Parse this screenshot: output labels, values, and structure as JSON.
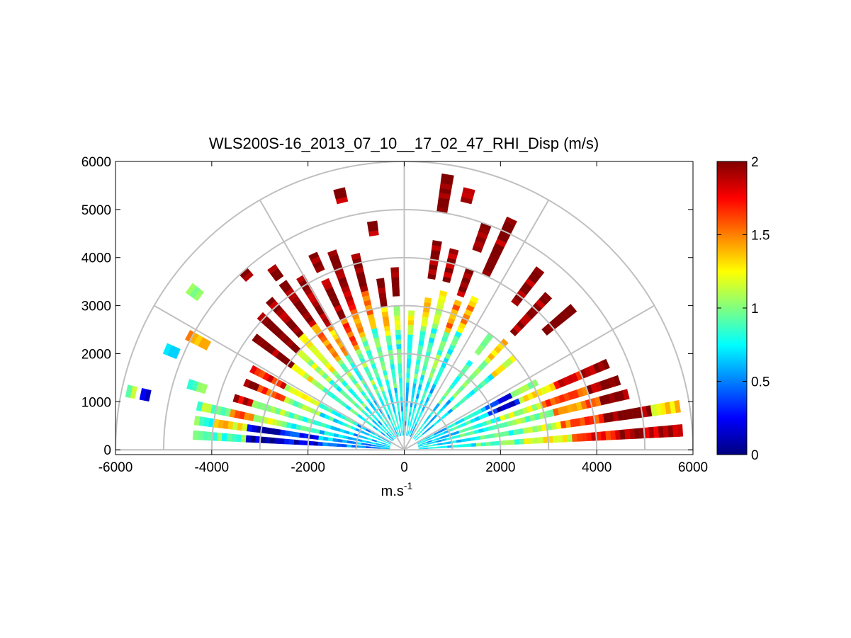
{
  "chart_data": {
    "type": "heatmap",
    "subtype": "polar-rhi-scan",
    "title": "WLS200S-16_2013_07_10__17_02_47_RHI_Disp (m/s)",
    "xlabel": "m.s",
    "xlabel_superscript": "-1",
    "ylabel": "",
    "xlim": [
      -6000,
      6000
    ],
    "ylim": [
      -100,
      6000
    ],
    "xticks": [
      "-6000",
      "-4000",
      "-2000",
      "0",
      "2000",
      "4000",
      "6000"
    ],
    "xtick_values": [
      -6000,
      -4000,
      -2000,
      0,
      2000,
      4000,
      6000
    ],
    "yticks": [
      "0",
      "1000",
      "2000",
      "3000",
      "4000",
      "5000",
      "6000"
    ],
    "ytick_values": [
      0,
      1000,
      2000,
      3000,
      4000,
      5000,
      6000
    ],
    "polar_grid": {
      "range_rings": [
        1000,
        2000,
        3000,
        4000,
        5000,
        6000
      ],
      "spokes_deg": [
        0,
        30,
        60,
        90,
        120,
        150,
        180
      ]
    },
    "colorbar": {
      "colormap": "jet",
      "min": 0,
      "max": 2,
      "ticks": [
        "0",
        "0.5",
        "1",
        "1.5",
        "2"
      ],
      "tick_values": [
        0,
        0.5,
        1,
        1.5,
        2
      ]
    },
    "range_gate_m": 100,
    "beam_width_deg": 2.5,
    "beams": [
      {
        "elev_deg": 4,
        "cells": [
          [
            300,
            1500,
            0.7
          ],
          [
            1500,
            2500,
            0.95
          ],
          [
            2500,
            3500,
            1.2
          ],
          [
            3500,
            4500,
            1.7
          ],
          [
            4500,
            5800,
            1.9
          ]
        ]
      },
      {
        "elev_deg": 9,
        "cells": [
          [
            300,
            1500,
            0.75
          ],
          [
            1500,
            2500,
            0.9
          ],
          [
            2500,
            3300,
            1.1
          ],
          [
            3300,
            4200,
            1.6
          ],
          [
            4200,
            5200,
            2.0
          ],
          [
            5200,
            5800,
            1.3
          ]
        ]
      },
      {
        "elev_deg": 14,
        "cells": [
          [
            300,
            1200,
            0.7
          ],
          [
            1200,
            2200,
            0.85
          ],
          [
            2200,
            3200,
            1.0
          ],
          [
            3200,
            4200,
            1.5
          ],
          [
            4200,
            4800,
            2.0
          ]
        ]
      },
      {
        "elev_deg": 18,
        "cells": [
          [
            300,
            1200,
            0.7
          ],
          [
            1200,
            2100,
            0.85
          ],
          [
            2100,
            3000,
            1.1
          ],
          [
            3000,
            4000,
            1.6
          ],
          [
            4000,
            4700,
            2.0
          ]
        ]
      },
      {
        "elev_deg": 23,
        "cells": [
          [
            300,
            1100,
            0.7
          ],
          [
            1100,
            1900,
            0.8
          ],
          [
            1900,
            2600,
            0.2
          ],
          [
            2600,
            3400,
            1.2
          ],
          [
            3400,
            4200,
            1.8
          ],
          [
            4200,
            4600,
            2.0
          ]
        ]
      },
      {
        "elev_deg": 27,
        "cells": [
          [
            300,
            1100,
            0.65
          ],
          [
            1100,
            1900,
            0.75
          ],
          [
            1900,
            2500,
            0.3
          ],
          [
            2500,
            3100,
            1.1
          ]
        ]
      },
      {
        "elev_deg": 40,
        "cells": [
          [
            300,
            1300,
            0.7
          ],
          [
            1300,
            2400,
            0.85
          ],
          [
            2400,
            3000,
            1.2
          ],
          [
            3800,
            4600,
            2.0
          ]
        ]
      },
      {
        "elev_deg": 47,
        "cells": [
          [
            300,
            1400,
            0.7
          ],
          [
            1400,
            2500,
            0.9
          ],
          [
            2500,
            3100,
            1.3
          ],
          [
            3300,
            4400,
            2.0
          ]
        ]
      },
      {
        "elev_deg": 53,
        "cells": [
          [
            300,
            1200,
            0.75
          ],
          [
            1200,
            2300,
            0.9
          ],
          [
            2500,
            3000,
            1.1
          ],
          [
            3800,
            4700,
            2.0
          ]
        ]
      },
      {
        "elev_deg": 65,
        "cells": [
          [
            300,
            1500,
            0.7
          ],
          [
            1500,
            2700,
            0.85
          ],
          [
            2700,
            3500,
            1.4
          ],
          [
            4000,
            5300,
            2.0
          ]
        ]
      },
      {
        "elev_deg": 70,
        "cells": [
          [
            300,
            1500,
            0.75
          ],
          [
            1500,
            2600,
            0.95
          ],
          [
            2600,
            3300,
            1.5
          ],
          [
            3400,
            4000,
            2.0
          ],
          [
            4400,
            5000,
            2.0
          ]
        ]
      },
      {
        "elev_deg": 76,
        "cells": [
          [
            300,
            1400,
            0.7
          ],
          [
            1400,
            2600,
            0.85
          ],
          [
            2600,
            3400,
            1.2
          ],
          [
            3600,
            4300,
            2.0
          ],
          [
            5300,
            5600,
            2.0
          ]
        ]
      },
      {
        "elev_deg": 81,
        "cells": [
          [
            300,
            1500,
            0.7
          ],
          [
            1500,
            2600,
            0.9
          ],
          [
            2600,
            3200,
            1.3
          ],
          [
            3600,
            4400,
            2.0
          ],
          [
            5000,
            5800,
            2.0
          ]
        ]
      },
      {
        "elev_deg": 87,
        "cells": [
          [
            300,
            1400,
            0.7
          ],
          [
            1400,
            2400,
            0.8
          ],
          [
            2400,
            2900,
            1.2
          ]
        ]
      },
      {
        "elev_deg": 93,
        "cells": [
          [
            300,
            1400,
            0.7
          ],
          [
            1400,
            2500,
            0.85
          ],
          [
            2500,
            3000,
            1.1
          ],
          [
            3200,
            3800,
            2.0
          ]
        ]
      },
      {
        "elev_deg": 98,
        "cells": [
          [
            300,
            1300,
            0.7
          ],
          [
            1300,
            2400,
            0.85
          ],
          [
            2400,
            3000,
            1.4
          ],
          [
            3000,
            3600,
            2.0
          ],
          [
            4500,
            4800,
            2.0
          ]
        ]
      },
      {
        "elev_deg": 104,
        "cells": [
          [
            300,
            1400,
            0.7
          ],
          [
            1400,
            2600,
            0.9
          ],
          [
            2600,
            3400,
            1.5
          ],
          [
            3400,
            4200,
            2.0
          ],
          [
            5300,
            5600,
            2.0
          ]
        ]
      },
      {
        "elev_deg": 110,
        "cells": [
          [
            300,
            1300,
            0.75
          ],
          [
            1300,
            2500,
            0.95
          ],
          [
            2500,
            3100,
            1.5
          ],
          [
            3100,
            3700,
            1.9
          ],
          [
            3700,
            4400,
            2.0
          ]
        ]
      },
      {
        "elev_deg": 115,
        "cells": [
          [
            300,
            1200,
            0.7
          ],
          [
            1200,
            2300,
            1.0
          ],
          [
            2300,
            3000,
            1.6
          ],
          [
            3000,
            3900,
            2.0
          ],
          [
            4100,
            4500,
            2.0
          ]
        ]
      },
      {
        "elev_deg": 121,
        "cells": [
          [
            300,
            1200,
            0.7
          ],
          [
            1200,
            2300,
            0.9
          ],
          [
            2300,
            3000,
            1.4
          ],
          [
            3000,
            4200,
            2.0
          ]
        ]
      },
      {
        "elev_deg": 126,
        "cells": [
          [
            300,
            1300,
            0.75
          ],
          [
            1300,
            2300,
            0.95
          ],
          [
            2300,
            3200,
            1.5
          ],
          [
            3200,
            4300,
            2.0
          ],
          [
            4400,
            4700,
            2.0
          ]
        ]
      },
      {
        "elev_deg": 132,
        "cells": [
          [
            300,
            1200,
            0.7
          ],
          [
            1200,
            2200,
            0.9
          ],
          [
            2200,
            3200,
            1.3
          ],
          [
            3200,
            4200,
            2.0
          ],
          [
            4800,
            5000,
            2.0
          ]
        ]
      },
      {
        "elev_deg": 137,
        "cells": [
          [
            300,
            1200,
            0.7
          ],
          [
            1200,
            2100,
            0.85
          ],
          [
            2100,
            3000,
            1.1
          ],
          [
            3000,
            4100,
            2.0
          ]
        ]
      },
      {
        "elev_deg": 143,
        "cells": [
          [
            300,
            1100,
            0.7
          ],
          [
            1100,
            2100,
            0.85
          ],
          [
            2100,
            2900,
            1.2
          ],
          [
            2900,
            3900,
            2.0
          ],
          [
            5300,
            5600,
            1.0
          ]
        ]
      },
      {
        "elev_deg": 152,
        "cells": [
          [
            300,
            1100,
            0.65
          ],
          [
            1100,
            2000,
            0.8
          ],
          [
            2000,
            2800,
            1.2
          ],
          [
            2800,
            3600,
            1.7
          ],
          [
            4600,
            5100,
            1.4
          ]
        ]
      },
      {
        "elev_deg": 157,
        "cells": [
          [
            300,
            1100,
            0.7
          ],
          [
            1100,
            1900,
            0.8
          ],
          [
            1900,
            2700,
            1.0
          ],
          [
            2700,
            3300,
            1.6
          ],
          [
            3300,
            3600,
            2.0
          ],
          [
            5100,
            5400,
            0.8
          ]
        ]
      },
      {
        "elev_deg": 163,
        "cells": [
          [
            300,
            1100,
            0.65
          ],
          [
            1100,
            1900,
            0.75
          ],
          [
            1900,
            2600,
            0.9
          ],
          [
            2600,
            3300,
            1.1
          ],
          [
            3300,
            3700,
            1.8
          ],
          [
            4300,
            4700,
            0.9
          ]
        ]
      },
      {
        "elev_deg": 168,
        "cells": [
          [
            300,
            1000,
            0.6
          ],
          [
            1000,
            1800,
            0.7
          ],
          [
            1800,
            2500,
            0.85
          ],
          [
            2500,
            3200,
            1.1
          ],
          [
            3200,
            3700,
            1.5
          ],
          [
            3700,
            4400,
            1.0
          ],
          [
            5400,
            5600,
            0.1
          ],
          [
            5700,
            5900,
            1.0
          ]
        ]
      },
      {
        "elev_deg": 172,
        "cells": [
          [
            300,
            1000,
            0.55
          ],
          [
            1000,
            1800,
            0.6
          ],
          [
            1800,
            2600,
            0.3
          ],
          [
            2600,
            3300,
            0.2
          ],
          [
            3300,
            4000,
            1.3
          ],
          [
            4000,
            4400,
            0.9
          ]
        ]
      },
      {
        "elev_deg": 176,
        "cells": [
          [
            300,
            1000,
            0.55
          ],
          [
            1000,
            1800,
            0.5
          ],
          [
            1800,
            2600,
            0.2
          ],
          [
            2600,
            3300,
            0.1
          ],
          [
            3300,
            4000,
            0.9
          ],
          [
            4000,
            4400,
            0.85
          ]
        ]
      }
    ]
  }
}
